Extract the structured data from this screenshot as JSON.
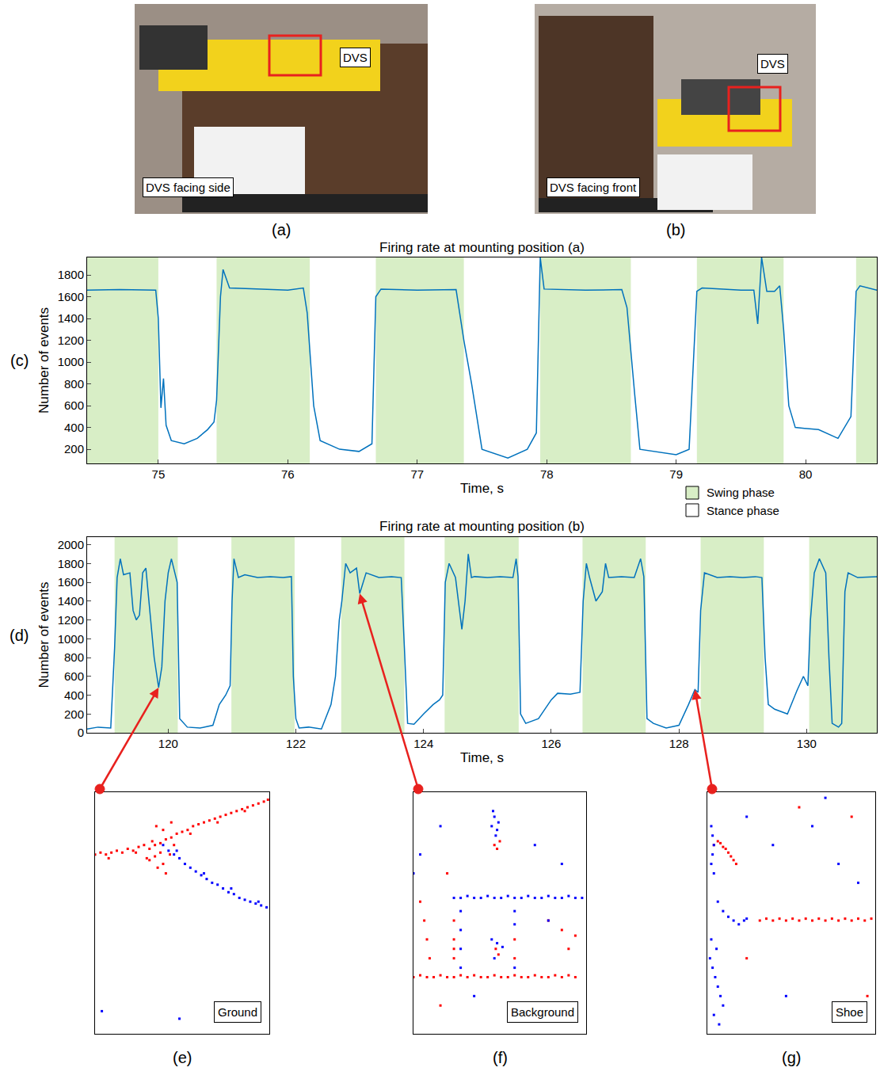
{
  "photos": [
    {
      "label": "(a)",
      "texts": [
        "DVS",
        "DVS facing side"
      ]
    },
    {
      "label": "(b)",
      "texts": [
        "DVS",
        "DVS facing front"
      ]
    }
  ],
  "legend_key": [
    {
      "name": "Swing phase",
      "color": "#d8eec6"
    },
    {
      "name": "Stance phase",
      "color": "#ffffff"
    }
  ],
  "chart_data": [
    {
      "label": "(c)",
      "type": "line",
      "title": "Firing rate at mounting position (a)",
      "x_label": "Time, s",
      "y_label": "Number of events",
      "color": "#0072bd",
      "grid": false,
      "xlim": [
        74.45,
        80.55
      ],
      "xticks": [
        75,
        76,
        77,
        78,
        79,
        80
      ],
      "ylim": [
        70,
        1960
      ],
      "yticks": [
        200,
        400,
        600,
        800,
        1000,
        1200,
        1400,
        1600,
        1800
      ],
      "shaded": {
        "name": "Swing phase",
        "spans": [
          [
            74.45,
            75.0
          ],
          [
            75.45,
            76.17
          ],
          [
            76.68,
            77.36
          ],
          [
            77.95,
            78.65
          ],
          [
            79.16,
            79.83
          ],
          [
            80.39,
            80.55
          ]
        ]
      },
      "x": [
        74.45,
        74.7,
        74.98,
        75.0,
        75.02,
        75.04,
        75.06,
        75.1,
        75.2,
        75.3,
        75.38,
        75.43,
        75.45,
        75.48,
        75.5,
        75.55,
        75.8,
        76.0,
        76.12,
        76.15,
        76.2,
        76.25,
        76.4,
        76.55,
        76.65,
        76.68,
        76.72,
        77.0,
        77.3,
        77.36,
        77.42,
        77.5,
        77.7,
        77.85,
        77.92,
        77.95,
        77.98,
        78.3,
        78.58,
        78.62,
        78.68,
        78.72,
        79.0,
        79.1,
        79.16,
        79.2,
        79.5,
        79.6,
        79.63,
        79.66,
        79.7,
        79.76,
        79.8,
        79.83,
        79.87,
        79.92,
        80.1,
        80.25,
        80.35,
        80.39,
        80.42,
        80.55
      ],
      "values": [
        1660,
        1665,
        1660,
        1400,
        580,
        850,
        420,
        280,
        250,
        300,
        380,
        450,
        650,
        1600,
        1850,
        1680,
        1670,
        1660,
        1680,
        1450,
        600,
        280,
        200,
        180,
        250,
        1600,
        1670,
        1660,
        1665,
        1200,
        800,
        200,
        120,
        200,
        350,
        1960,
        1670,
        1660,
        1665,
        1500,
        700,
        200,
        150,
        200,
        1650,
        1680,
        1660,
        1660,
        1350,
        1960,
        1650,
        1650,
        1700,
        1300,
        600,
        400,
        380,
        300,
        500,
        1650,
        1700,
        1660
      ]
    },
    {
      "label": "(d)",
      "type": "line",
      "title": "Firing rate at mounting position (b)",
      "x_label": "Time, s",
      "y_label": "Number of events",
      "color": "#0072bd",
      "grid": false,
      "xlim": [
        118.73,
        131.1
      ],
      "xticks": [
        120,
        122,
        124,
        126,
        128,
        130
      ],
      "ylim": [
        0,
        2080
      ],
      "yticks": [
        0,
        200,
        400,
        600,
        800,
        1000,
        1200,
        1400,
        1600,
        1800,
        2000
      ],
      "shaded": {
        "name": "Swing phase",
        "spans": [
          [
            119.16,
            120.15
          ],
          [
            120.99,
            121.98
          ],
          [
            122.71,
            123.7
          ],
          [
            124.33,
            125.49
          ],
          [
            126.49,
            127.48
          ],
          [
            128.34,
            129.33
          ],
          [
            130.04,
            131.1
          ]
        ]
      },
      "pointers": [
        {
          "x": 119.85,
          "y": 480,
          "to": "(e)"
        },
        {
          "x": 123.0,
          "y": 1480,
          "to": "(f)"
        },
        {
          "x": 128.25,
          "y": 460,
          "to": "(g)"
        }
      ],
      "x": [
        118.73,
        118.9,
        119.1,
        119.16,
        119.2,
        119.25,
        119.3,
        119.4,
        119.45,
        119.5,
        119.55,
        119.6,
        119.65,
        119.7,
        119.78,
        119.85,
        119.9,
        119.95,
        120.0,
        120.05,
        120.1,
        120.14,
        120.18,
        120.3,
        120.5,
        120.7,
        120.8,
        120.9,
        120.97,
        121.0,
        121.03,
        121.1,
        121.2,
        121.4,
        121.6,
        121.8,
        121.93,
        121.96,
        122.0,
        122.05,
        122.2,
        122.4,
        122.55,
        122.62,
        122.68,
        122.72,
        122.78,
        122.85,
        122.95,
        123.0,
        123.1,
        123.3,
        123.5,
        123.65,
        123.7,
        123.75,
        123.85,
        124.0,
        124.15,
        124.25,
        124.3,
        124.34,
        124.4,
        124.5,
        124.6,
        124.65,
        124.7,
        124.75,
        124.8,
        125.0,
        125.2,
        125.4,
        125.45,
        125.48,
        125.52,
        125.6,
        125.8,
        126.0,
        126.1,
        126.3,
        126.45,
        126.5,
        126.55,
        126.6,
        126.7,
        126.8,
        126.85,
        126.9,
        127.1,
        127.3,
        127.4,
        127.45,
        127.5,
        127.6,
        127.8,
        128.0,
        128.15,
        128.25,
        128.3,
        128.34,
        128.4,
        128.6,
        128.8,
        129.0,
        129.2,
        129.3,
        129.35,
        129.4,
        129.5,
        129.7,
        129.85,
        129.95,
        130.02,
        130.06,
        130.12,
        130.2,
        130.3,
        130.35,
        130.4,
        130.5,
        130.55,
        130.6,
        130.65,
        130.8,
        131.1
      ],
      "values": [
        40,
        60,
        50,
        900,
        1650,
        1850,
        1680,
        1700,
        1300,
        1200,
        1250,
        1700,
        1750,
        1400,
        800,
        480,
        700,
        1400,
        1700,
        1850,
        1700,
        1600,
        150,
        60,
        50,
        80,
        300,
        400,
        500,
        1400,
        1850,
        1650,
        1680,
        1650,
        1660,
        1650,
        1660,
        600,
        150,
        50,
        60,
        40,
        300,
        600,
        1200,
        1400,
        1800,
        1700,
        1750,
        1480,
        1700,
        1650,
        1660,
        1650,
        900,
        100,
        90,
        200,
        300,
        350,
        400,
        1600,
        1800,
        1650,
        1100,
        1400,
        1900,
        1650,
        1660,
        1650,
        1660,
        1650,
        1850,
        1660,
        200,
        100,
        150,
        350,
        420,
        410,
        430,
        1400,
        1800,
        1650,
        1400,
        1500,
        1800,
        1650,
        1660,
        1650,
        1850,
        1660,
        150,
        100,
        50,
        80,
        300,
        460,
        430,
        1300,
        1700,
        1650,
        1660,
        1650,
        1660,
        1650,
        800,
        300,
        250,
        200,
        450,
        600,
        500,
        1200,
        1700,
        1850,
        1700,
        800,
        100,
        60,
        100,
        1500,
        1700,
        1650,
        1660
      ]
    },
    {
      "label": "(e)",
      "type": "scatter",
      "marker": "square",
      "tick_labels": false,
      "annotations": [
        "Ground"
      ],
      "xlim": [
        0,
        128
      ],
      "ylim": [
        0,
        128
      ],
      "series": [
        {
          "color": "#ff0000",
          "x": [
            0,
            4,
            8,
            12,
            16,
            20,
            24,
            28,
            32,
            36,
            40,
            44,
            48,
            52,
            56,
            60,
            64,
            68,
            72,
            76,
            80,
            84,
            88,
            92,
            96,
            100,
            104,
            108,
            112,
            116,
            120,
            124,
            127,
            40,
            44,
            46,
            50,
            52,
            48,
            42,
            38,
            55,
            58,
            50,
            45,
            56,
            10,
            30,
            70,
            90,
            110
          ],
          "values": [
            95,
            96,
            95,
            96,
            97,
            96,
            98,
            97,
            99,
            100,
            98,
            100,
            101,
            103,
            104,
            106,
            107,
            108,
            110,
            111,
            112,
            113,
            114,
            115,
            116,
            117,
            118,
            119,
            120,
            121,
            122,
            123,
            124,
            92,
            94,
            88,
            90,
            85,
            96,
            102,
            93,
            95,
            100,
            108,
            110,
            112,
            93,
            96,
            106,
            112,
            118
          ]
        },
        {
          "color": "#0000ff",
          "x": [
            50,
            54,
            58,
            62,
            66,
            70,
            74,
            78,
            82,
            86,
            90,
            94,
            98,
            102,
            106,
            110,
            114,
            118,
            122,
            126,
            60,
            80,
            100,
            120,
            5,
            62
          ],
          "values": [
            100,
            97,
            95,
            93,
            90,
            88,
            86,
            84,
            82,
            80,
            79,
            77,
            75,
            74,
            72,
            71,
            70,
            69,
            68,
            67,
            97,
            85,
            77,
            70,
            12,
            8
          ]
        }
      ]
    },
    {
      "label": "(f)",
      "type": "scatter",
      "marker": "square",
      "tick_labels": false,
      "annotations": [
        "Background"
      ],
      "xlim": [
        0,
        128
      ],
      "ylim": [
        0,
        128
      ],
      "series": [
        {
          "color": "#ff0000",
          "x": [
            0,
            5,
            10,
            15,
            20,
            25,
            30,
            35,
            40,
            45,
            50,
            55,
            60,
            65,
            70,
            75,
            80,
            85,
            90,
            95,
            100,
            105,
            110,
            115,
            120,
            5,
            8,
            10,
            12,
            30,
            30,
            30,
            30,
            75,
            75,
            60,
            62,
            64,
            61,
            63,
            100,
            110,
            115,
            120,
            20,
            25
          ],
          "values": [
            30,
            31,
            30,
            30,
            31,
            30,
            30,
            31,
            30,
            31,
            30,
            30,
            31,
            30,
            30,
            31,
            30,
            30,
            31,
            30,
            30,
            31,
            30,
            31,
            30,
            70,
            60,
            50,
            40,
            60,
            50,
            45,
            40,
            50,
            40,
            100,
            98,
            102,
            45,
            42,
            60,
            55,
            45,
            52,
            15,
            85
          ]
        },
        {
          "color": "#0000ff",
          "x": [
            30,
            35,
            40,
            45,
            50,
            55,
            60,
            65,
            70,
            75,
            80,
            85,
            90,
            95,
            100,
            105,
            110,
            115,
            120,
            125,
            60,
            58,
            62,
            59,
            61,
            63,
            35,
            35,
            35,
            35,
            75,
            75,
            75,
            58,
            62,
            60,
            66,
            0,
            5,
            100,
            110,
            90,
            20,
            45
          ],
          "values": [
            72,
            72,
            73,
            72,
            72,
            73,
            72,
            72,
            73,
            72,
            72,
            73,
            72,
            72,
            73,
            72,
            72,
            73,
            72,
            72,
            115,
            110,
            108,
            118,
            105,
            112,
            65,
            55,
            45,
            35,
            65,
            58,
            35,
            50,
            48,
            40,
            46,
            85,
            95,
            60,
            90,
            100,
            110,
            20
          ]
        }
      ]
    },
    {
      "label": "(g)",
      "type": "scatter",
      "marker": "square",
      "tick_labels": false,
      "annotations": [
        "Shoe"
      ],
      "xlim": [
        0,
        128
      ],
      "ylim": [
        0,
        128
      ],
      "series": [
        {
          "color": "#ff0000",
          "x": [
            5,
            8,
            10,
            12,
            14,
            16,
            18,
            20,
            22,
            40,
            45,
            50,
            55,
            60,
            65,
            70,
            75,
            80,
            85,
            90,
            95,
            100,
            105,
            110,
            115,
            120,
            125,
            70,
            110,
            30,
            122
          ],
          "values": [
            100,
            102,
            101,
            99,
            98,
            96,
            94,
            92,
            90,
            60,
            61,
            60,
            61,
            60,
            61,
            60,
            61,
            60,
            61,
            60,
            61,
            60,
            61,
            60,
            61,
            60,
            61,
            120,
            115,
            40,
            20
          ]
        },
        {
          "color": "#0000ff",
          "x": [
            3,
            4,
            5,
            4,
            3,
            5,
            8,
            12,
            16,
            20,
            24,
            28,
            30,
            2,
            4,
            6,
            8,
            10,
            12,
            5,
            3,
            7,
            9,
            50,
            80,
            100,
            60,
            30,
            90,
            115
          ],
          "values": [
            110,
            105,
            100,
            95,
            90,
            85,
            70,
            65,
            62,
            60,
            58,
            60,
            61,
            40,
            35,
            30,
            25,
            20,
            15,
            10,
            50,
            45,
            5,
            100,
            110,
            90,
            20,
            115,
            125,
            80
          ]
        }
      ]
    }
  ]
}
